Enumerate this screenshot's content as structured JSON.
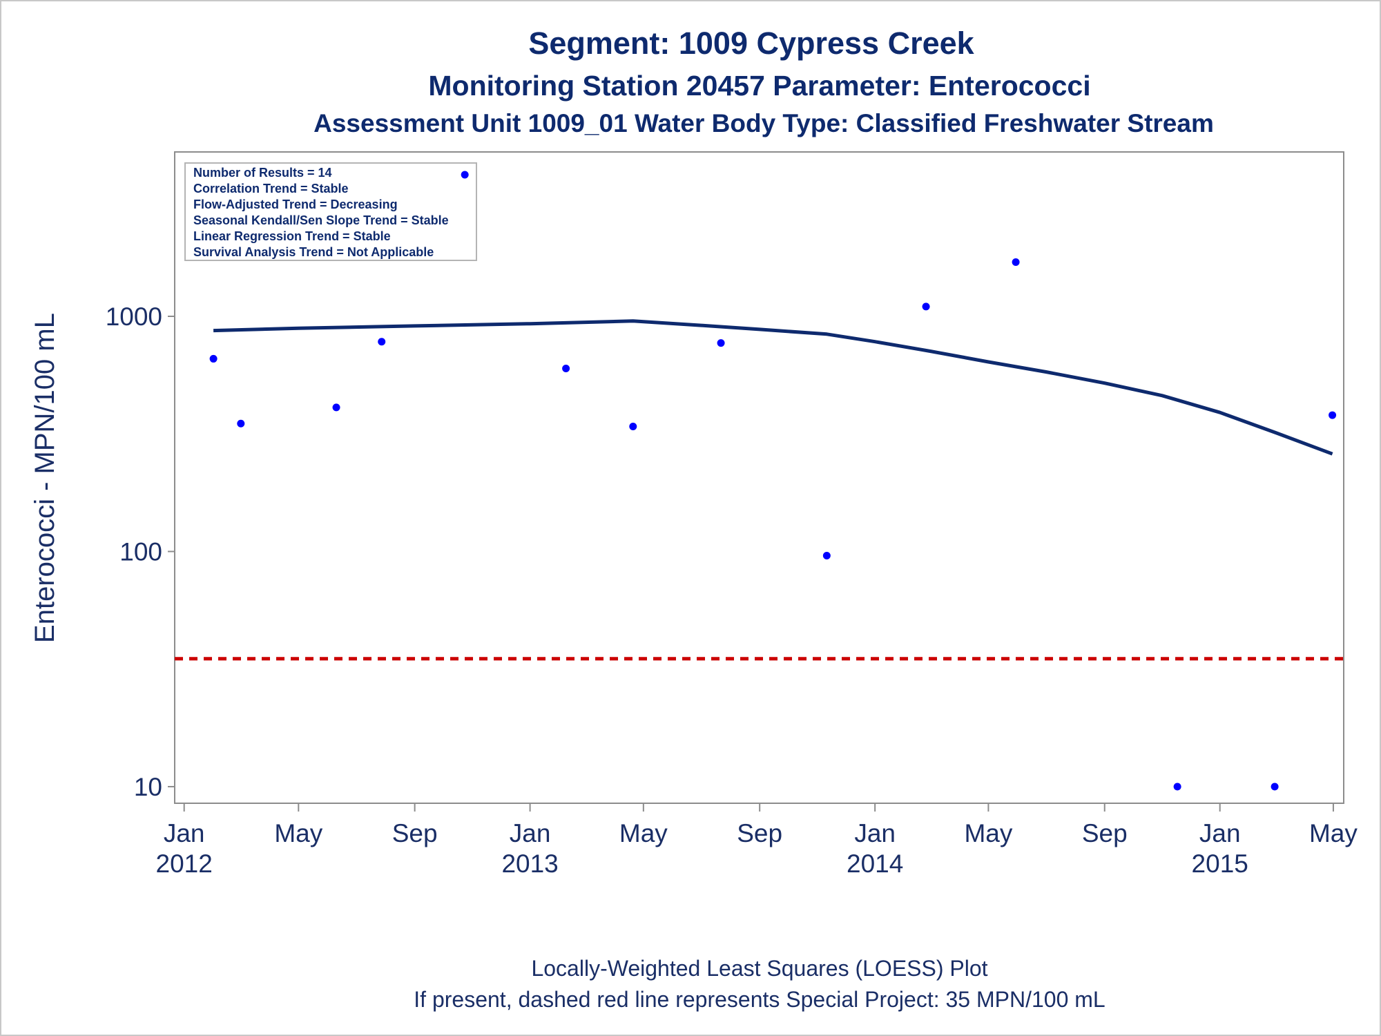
{
  "chart_data": {
    "type": "scatter",
    "title": "Segment: 1009  Cypress Creek",
    "subtitle": "Monitoring Station 20457 Parameter: Enterococci",
    "subtitle2": "Assessment Unit 1009_01   Water Body Type: Classified Freshwater Stream",
    "ylabel": "Enterococci - MPN/100 mL",
    "yscale": "log",
    "ylim": [
      8.5,
      5000
    ],
    "xlim": [
      "2011-12-22",
      "2015-05-12"
    ],
    "y_ticks": [
      {
        "value": 10,
        "label": "10"
      },
      {
        "value": 100,
        "label": "100"
      },
      {
        "value": 1000,
        "label": "1000"
      }
    ],
    "x_ticks": [
      {
        "date": "2012-01-01",
        "label1": "Jan",
        "label2": "2012"
      },
      {
        "date": "2012-05-01",
        "label1": "May",
        "label2": ""
      },
      {
        "date": "2012-09-01",
        "label1": "Sep",
        "label2": ""
      },
      {
        "date": "2013-01-01",
        "label1": "Jan",
        "label2": "2013"
      },
      {
        "date": "2013-05-01",
        "label1": "May",
        "label2": ""
      },
      {
        "date": "2013-09-01",
        "label1": "Sep",
        "label2": ""
      },
      {
        "date": "2014-01-01",
        "label1": "Jan",
        "label2": "2014"
      },
      {
        "date": "2014-05-01",
        "label1": "May",
        "label2": ""
      },
      {
        "date": "2014-09-01",
        "label1": "Sep",
        "label2": ""
      },
      {
        "date": "2015-01-01",
        "label1": "Jan",
        "label2": "2015"
      },
      {
        "date": "2015-05-01",
        "label1": "May",
        "label2": ""
      }
    ],
    "points": [
      {
        "x": "2012-02-01",
        "y": 660
      },
      {
        "x": "2012-03-01",
        "y": 350
      },
      {
        "x": "2012-06-10",
        "y": 410
      },
      {
        "x": "2012-07-28",
        "y": 780
      },
      {
        "x": "2012-10-24",
        "y": 4000
      },
      {
        "x": "2013-02-08",
        "y": 600
      },
      {
        "x": "2013-04-20",
        "y": 340
      },
      {
        "x": "2013-07-22",
        "y": 770
      },
      {
        "x": "2013-11-11",
        "y": 96
      },
      {
        "x": "2014-02-24",
        "y": 1100
      },
      {
        "x": "2014-05-30",
        "y": 1700
      },
      {
        "x": "2014-11-17",
        "y": 10
      },
      {
        "x": "2015-02-28",
        "y": 10
      },
      {
        "x": "2015-04-30",
        "y": 380
      }
    ],
    "loess_line": [
      {
        "x": "2012-02-01",
        "y": 870
      },
      {
        "x": "2012-05-01",
        "y": 890
      },
      {
        "x": "2012-09-01",
        "y": 910
      },
      {
        "x": "2013-01-01",
        "y": 930
      },
      {
        "x": "2013-04-20",
        "y": 955
      },
      {
        "x": "2013-07-01",
        "y": 915
      },
      {
        "x": "2013-09-01",
        "y": 880
      },
      {
        "x": "2013-11-11",
        "y": 840
      },
      {
        "x": "2014-01-01",
        "y": 780
      },
      {
        "x": "2014-03-01",
        "y": 710
      },
      {
        "x": "2014-05-01",
        "y": 640
      },
      {
        "x": "2014-07-01",
        "y": 580
      },
      {
        "x": "2014-09-01",
        "y": 520
      },
      {
        "x": "2014-11-01",
        "y": 460
      },
      {
        "x": "2015-01-01",
        "y": 390
      },
      {
        "x": "2015-03-01",
        "y": 320
      },
      {
        "x": "2015-04-30",
        "y": 260
      }
    ],
    "reference_line": {
      "y": 35
    },
    "inset_lines": [
      "Number of Results = 14",
      "Correlation Trend = Stable",
      "Flow-Adjusted Trend = Decreasing",
      "Seasonal Kendall/Sen Slope Trend = Stable",
      "Linear Regression Trend = Stable",
      "Survival Analysis Trend = Not Applicable"
    ],
    "footnote1": "Locally-Weighted Least Squares (LOESS) Plot",
    "footnote2": "If present, dashed red line represents Special Project: 35 MPN/100 mL",
    "colors": {
      "points": "#0000ff",
      "loess": "#0e2a6e",
      "reference": "#cc0000",
      "text": "#0e2a6e",
      "axis": "#8c8c8c"
    }
  }
}
